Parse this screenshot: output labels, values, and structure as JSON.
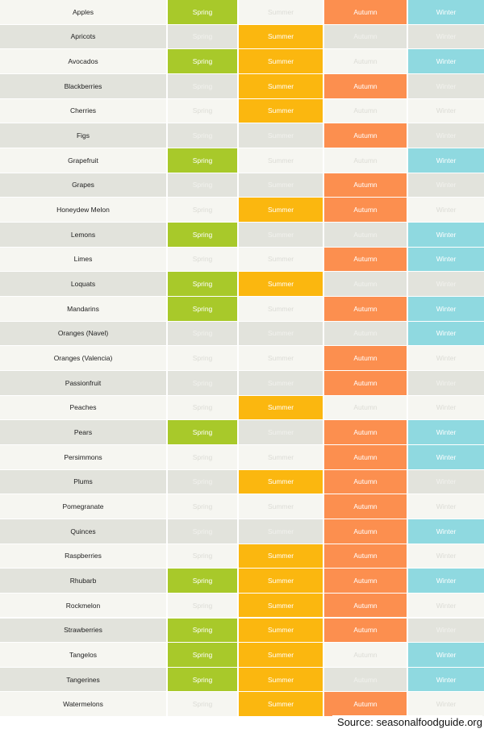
{
  "seasons": [
    "Spring",
    "Summer",
    "Autumn",
    "Winter"
  ],
  "colors": {
    "spring": "#a8c92a",
    "summer": "#fbb70f",
    "autumn": "#fc8f4f",
    "winter": "#8fd9e0"
  },
  "rows": [
    {
      "name": "Apples",
      "spring": true,
      "summer": false,
      "autumn": true,
      "winter": true
    },
    {
      "name": "Apricots",
      "spring": false,
      "summer": true,
      "autumn": false,
      "winter": false
    },
    {
      "name": "Avocados",
      "spring": true,
      "summer": true,
      "autumn": false,
      "winter": true
    },
    {
      "name": "Blackberries",
      "spring": false,
      "summer": true,
      "autumn": true,
      "winter": false
    },
    {
      "name": "Cherries",
      "spring": false,
      "summer": true,
      "autumn": false,
      "winter": false
    },
    {
      "name": "Figs",
      "spring": false,
      "summer": false,
      "autumn": true,
      "winter": false
    },
    {
      "name": "Grapefruit",
      "spring": true,
      "summer": false,
      "autumn": false,
      "winter": true
    },
    {
      "name": "Grapes",
      "spring": false,
      "summer": false,
      "autumn": true,
      "winter": false
    },
    {
      "name": "Honeydew Melon",
      "spring": false,
      "summer": true,
      "autumn": true,
      "winter": false
    },
    {
      "name": "Lemons",
      "spring": true,
      "summer": false,
      "autumn": false,
      "winter": true
    },
    {
      "name": "Limes",
      "spring": false,
      "summer": false,
      "autumn": true,
      "winter": true
    },
    {
      "name": "Loquats",
      "spring": true,
      "summer": true,
      "autumn": false,
      "winter": false
    },
    {
      "name": "Mandarins",
      "spring": true,
      "summer": false,
      "autumn": true,
      "winter": true
    },
    {
      "name": "Oranges (Navel)",
      "spring": false,
      "summer": false,
      "autumn": false,
      "winter": true
    },
    {
      "name": "Oranges (Valencia)",
      "spring": false,
      "summer": false,
      "autumn": true,
      "winter": false
    },
    {
      "name": "Passionfruit",
      "spring": false,
      "summer": false,
      "autumn": true,
      "winter": false
    },
    {
      "name": "Peaches",
      "spring": false,
      "summer": true,
      "autumn": false,
      "winter": false
    },
    {
      "name": "Pears",
      "spring": true,
      "summer": false,
      "autumn": true,
      "winter": true
    },
    {
      "name": "Persimmons",
      "spring": false,
      "summer": false,
      "autumn": true,
      "winter": true
    },
    {
      "name": "Plums",
      "spring": false,
      "summer": true,
      "autumn": true,
      "winter": false
    },
    {
      "name": "Pomegranate",
      "spring": false,
      "summer": false,
      "autumn": true,
      "winter": false
    },
    {
      "name": "Quinces",
      "spring": false,
      "summer": false,
      "autumn": true,
      "winter": true
    },
    {
      "name": "Raspberries",
      "spring": false,
      "summer": true,
      "autumn": true,
      "winter": false
    },
    {
      "name": "Rhubarb",
      "spring": true,
      "summer": true,
      "autumn": true,
      "winter": true
    },
    {
      "name": "Rockmelon",
      "spring": false,
      "summer": true,
      "autumn": true,
      "winter": false
    },
    {
      "name": "Strawberries",
      "spring": true,
      "summer": true,
      "autumn": true,
      "winter": false
    },
    {
      "name": "Tangelos",
      "spring": true,
      "summer": true,
      "autumn": false,
      "winter": true
    },
    {
      "name": "Tangerines",
      "spring": true,
      "summer": true,
      "autumn": false,
      "winter": true
    },
    {
      "name": "Watermelons",
      "spring": false,
      "summer": true,
      "autumn": true,
      "winter": false
    }
  ],
  "source": "Source: seasonalfoodguide.org"
}
